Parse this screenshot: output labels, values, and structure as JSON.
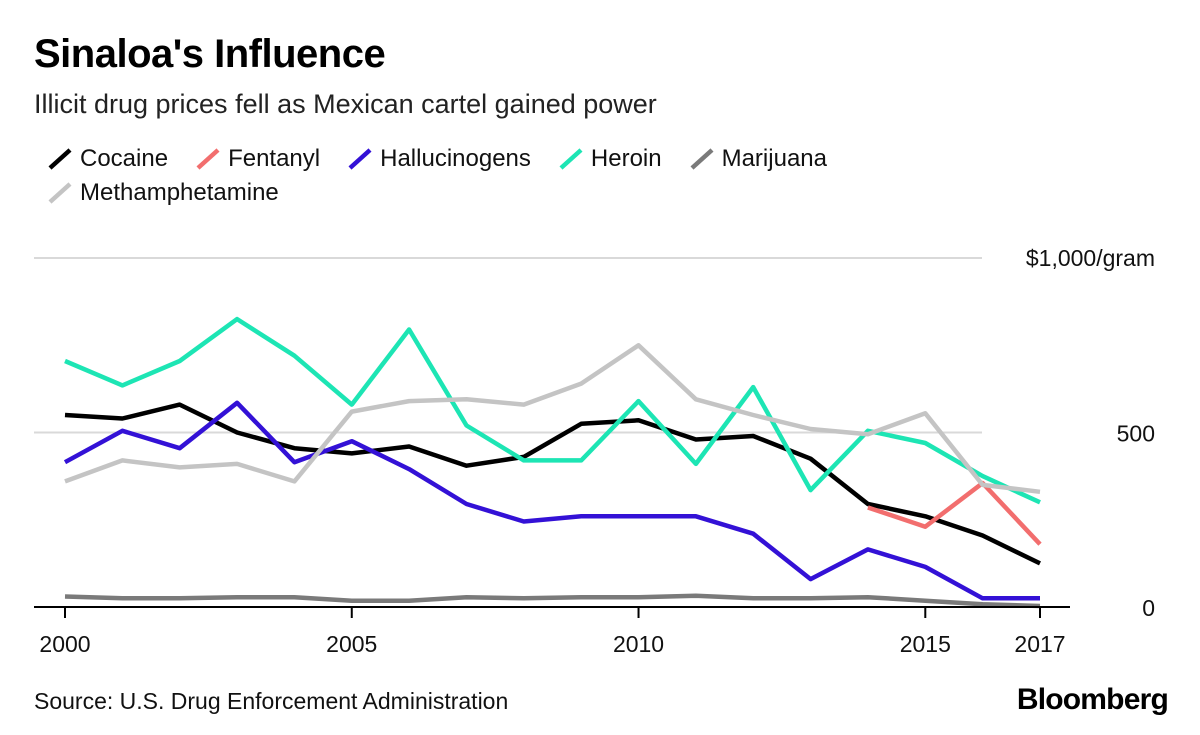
{
  "header": {
    "title": "Sinaloa's Influence",
    "subtitle": "Illicit drug prices fell as Mexican cartel gained power"
  },
  "footer": {
    "source": "Source: U.S. Drug Enforcement Administration",
    "brand": "Bloomberg"
  },
  "chart_data": {
    "type": "line",
    "title": "Sinaloa's Influence",
    "subtitle": "Illicit drug prices fell as Mexican cartel gained power",
    "xlabel": "",
    "ylabel": "",
    "x_ticks": [
      "2000",
      "2005",
      "2010",
      "2015",
      "2017"
    ],
    "y_ticks": [
      "0",
      "500",
      "$1,000/gram"
    ],
    "y_tick_values": [
      0,
      500,
      1000
    ],
    "xlim": [
      2000,
      2017
    ],
    "ylim": [
      0,
      1000
    ],
    "grid": true,
    "legend_position": "top",
    "series": [
      {
        "name": "Cocaine",
        "color": "#000000",
        "x": [
          2000,
          2001,
          2002,
          2003,
          2004,
          2005,
          2006,
          2007,
          2008,
          2009,
          2010,
          2011,
          2012,
          2013,
          2014,
          2015,
          2016,
          2017
        ],
        "values": [
          550,
          540,
          580,
          500,
          455,
          440,
          460,
          405,
          430,
          525,
          535,
          480,
          490,
          425,
          295,
          260,
          205,
          125
        ]
      },
      {
        "name": "Fentanyl",
        "color": "#f26e6e",
        "x": [
          2014,
          2015,
          2016,
          2017
        ],
        "values": [
          285,
          230,
          355,
          180
        ]
      },
      {
        "name": "Hallucinogens",
        "color": "#3311d6",
        "x": [
          2000,
          2001,
          2002,
          2003,
          2004,
          2005,
          2006,
          2007,
          2008,
          2009,
          2010,
          2011,
          2012,
          2013,
          2014,
          2015,
          2016,
          2017
        ],
        "values": [
          415,
          505,
          455,
          585,
          415,
          475,
          395,
          295,
          245,
          260,
          260,
          260,
          210,
          80,
          165,
          115,
          25,
          25
        ]
      },
      {
        "name": "Heroin",
        "color": "#1de5b4",
        "x": [
          2000,
          2001,
          2002,
          2003,
          2004,
          2005,
          2006,
          2007,
          2008,
          2009,
          2010,
          2011,
          2012,
          2013,
          2014,
          2015,
          2016,
          2017
        ],
        "values": [
          705,
          635,
          705,
          825,
          720,
          580,
          795,
          520,
          420,
          420,
          590,
          410,
          630,
          335,
          505,
          470,
          375,
          300
        ]
      },
      {
        "name": "Marijuana",
        "color": "#7a7a7a",
        "x": [
          2000,
          2001,
          2002,
          2003,
          2004,
          2005,
          2006,
          2007,
          2008,
          2009,
          2010,
          2011,
          2012,
          2013,
          2014,
          2015,
          2016,
          2017
        ],
        "values": [
          30,
          25,
          25,
          28,
          28,
          18,
          18,
          28,
          25,
          28,
          28,
          32,
          25,
          25,
          28,
          18,
          8,
          3
        ]
      },
      {
        "name": "Methamphetamine",
        "color": "#c4c4c4",
        "x": [
          2000,
          2001,
          2002,
          2003,
          2004,
          2005,
          2006,
          2007,
          2008,
          2009,
          2010,
          2011,
          2012,
          2013,
          2014,
          2015,
          2016,
          2017
        ],
        "values": [
          360,
          420,
          400,
          410,
          360,
          560,
          590,
          595,
          580,
          640,
          750,
          595,
          550,
          510,
          495,
          555,
          350,
          330
        ]
      }
    ]
  }
}
